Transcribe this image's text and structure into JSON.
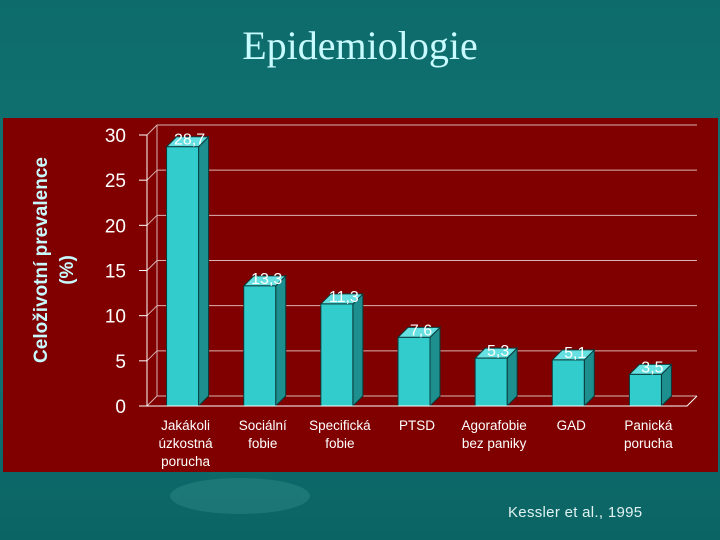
{
  "slide": {
    "title": "Epidemiologie",
    "credit": "Kessler et al., 1995"
  },
  "chart_data": {
    "type": "bar",
    "ylabel_line1": "Celoživotní prevalence",
    "ylabel_line2": "(%)",
    "ylim": [
      0,
      30
    ],
    "yticks": [
      "0",
      "5",
      "10",
      "15",
      "20",
      "25",
      "30"
    ],
    "categories": [
      [
        "Jakákoli",
        "úzkostná",
        "porucha"
      ],
      [
        "Sociální",
        "fobie"
      ],
      [
        "Specifická",
        "fobie"
      ],
      [
        "PTSD"
      ],
      [
        "Agorafobie",
        "bez paniky"
      ],
      [
        "GAD"
      ],
      [
        "Panická",
        "porucha"
      ]
    ],
    "values": [
      28.7,
      13.3,
      11.3,
      7.6,
      5.3,
      5.1,
      3.5
    ],
    "value_labels": [
      "28,7",
      "13,3",
      "11,3",
      "7,6",
      "5,3",
      "5,1",
      "3,5"
    ],
    "grid": true,
    "bar_color": "#33cccc"
  }
}
